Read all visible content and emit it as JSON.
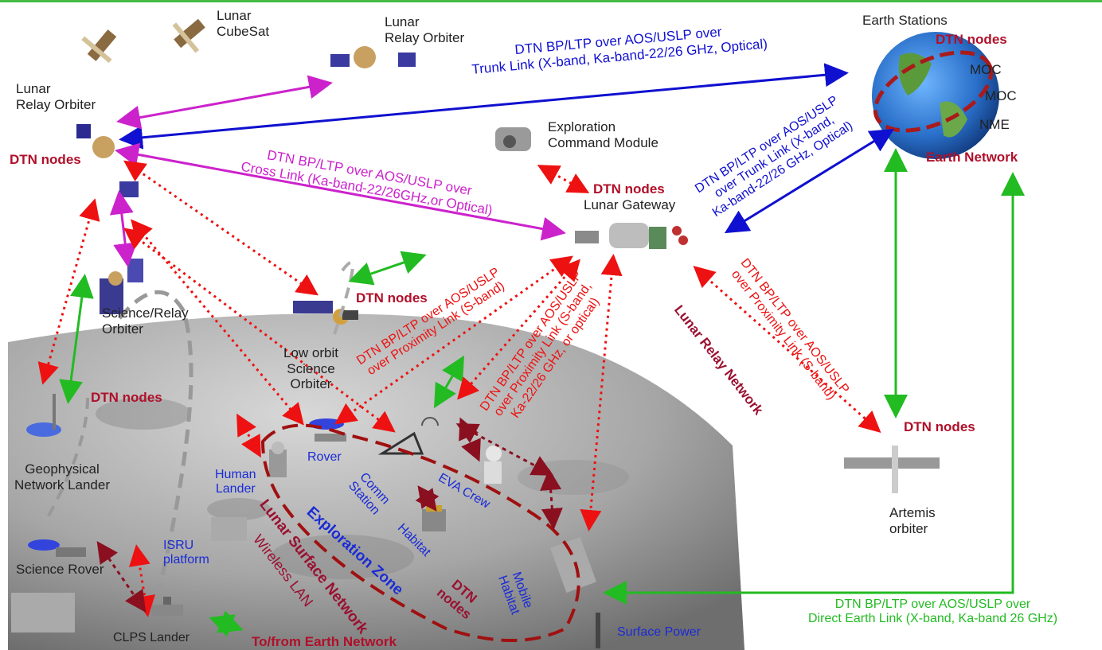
{
  "labels": {
    "lunar_cubesat": "Lunar\nCubeSat",
    "lunar_relay_orbiter_top": "Lunar\nRelay Orbiter",
    "lunar_relay_orbiter_left": "Lunar\nRelay Orbiter",
    "dtn_nodes_left": "DTN nodes",
    "earth_stations": "Earth Stations",
    "dtn_nodes_earth": "DTN nodes",
    "moc1": "MOC",
    "moc2": "MOC",
    "nme": "NME",
    "earth_network": "Earth Network",
    "exploration_command_module": "Exploration\nCommand Module",
    "dtn_nodes_gateway": "DTN nodes",
    "lunar_gateway": "Lunar Gateway",
    "dtn_nodes_low_orbit": "DTN nodes",
    "science_relay_orbiter": "Science/Relay\nOrbiter",
    "low_orbit_science_orbiter": "Low orbit\nScience\nOrbiter",
    "dtn_nodes_geophysical": "DTN nodes",
    "geophysical_network_lander": "Geophysical\nNetwork Lander",
    "rover": "Rover",
    "human_lander": "Human\nLander",
    "comm_station": "Comm\nStation",
    "eva_crew": "EVA Crew",
    "habitat": "Habitat",
    "isru_platform": "ISRU\nplatform",
    "science_rover": "Science Rover",
    "clps_lander": "CLPS Lander",
    "to_from_earth_network": "To/from Earth Network",
    "exploration_zone": "Exploration Zone",
    "lunar_surface_network": "Lunar Surface Network",
    "wireless_lan": "Wireless LAN",
    "dtn_nodes_surface": "DTN\nnodes",
    "mobile_habitat": "Mobile\nHabitat",
    "surface_power": "Surface Power",
    "dtn_nodes_artemis": "DTN nodes",
    "artemis_orbiter": "Artemis\norbiter",
    "lunar_relay_network": "Lunar Relay Network"
  },
  "links": {
    "trunk_top": "DTN BP/LTP over AOS/USLP over\nTrunk Link (X-band, Ka-band-22/26 GHz, Optical)",
    "cross_link": "DTN BP/LTP over AOS/USLP over\nCross Link (Ka-band-22/26GHz,or Optical)",
    "trunk_gateway": "DTN BP/LTP over AOS/USLP\nover Trunk Link (X-band,\nKa-band-22/26 GHz, Optical)",
    "proximity_s": "DTN BP/LTP over AOS/USLP\nover Proximity Link (S-band)",
    "proximity_ka": "DTN BP/LTP over AOS/USLP\nover Proximity Link (S-band,\nKa-22/26 GHz, or optical)",
    "proximity_artemis": "DTN BP/LTP over AOS/USLP\nover Proximity Link (S-band)",
    "direct_earth": "DTN BP/LTP over AOS/USLP over\nDirect Earth Link (X-band, Ka-band 26 GHz)"
  },
  "colors": {
    "trunk": "#1010d0",
    "cross": "#cc22cc",
    "proximity": "#ee1111",
    "direct": "#22bb22",
    "dtn_label": "#b0102a",
    "surface_label": "#1a2bd6",
    "zone_outline": "#a01010"
  }
}
